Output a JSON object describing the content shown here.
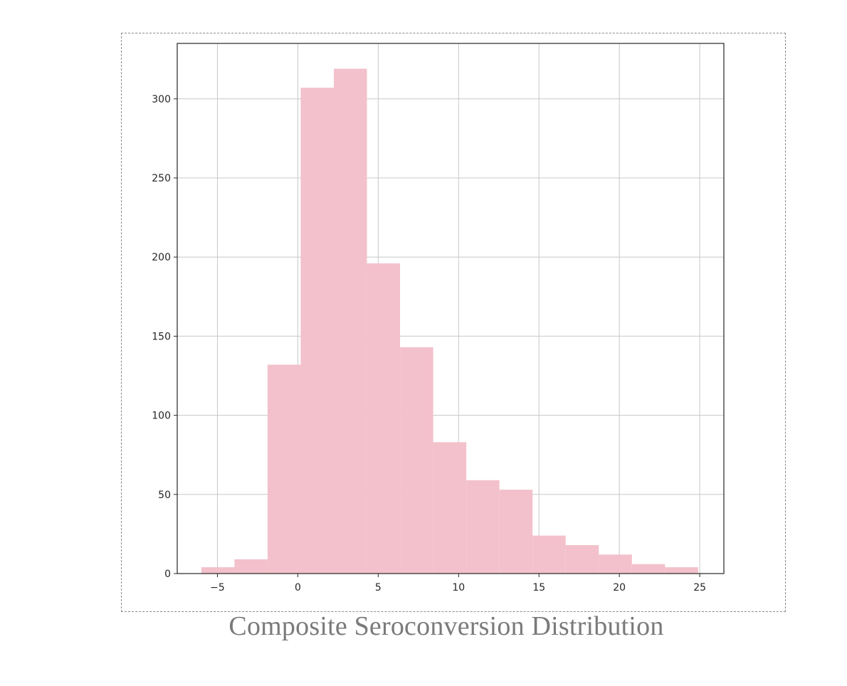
{
  "caption": "Composite Seroconversion Distribution",
  "chart_data": {
    "type": "bar",
    "subtype": "histogram",
    "bin_edges": [
      -6.0,
      -3.94,
      -1.88,
      0.18,
      2.24,
      4.3,
      6.36,
      8.42,
      10.48,
      12.54,
      14.6,
      16.66,
      18.72,
      20.78,
      22.84,
      24.9
    ],
    "values": [
      4,
      9,
      132,
      307,
      319,
      196,
      143,
      83,
      59,
      53,
      24,
      18,
      12,
      6,
      4
    ],
    "xlim": [
      -7.5,
      26.5
    ],
    "ylim": [
      0,
      335
    ],
    "xticks": [
      -5,
      0,
      5,
      10,
      15,
      20,
      25
    ],
    "xtick_labels": [
      "−5",
      "0",
      "5",
      "10",
      "15",
      "20",
      "25"
    ],
    "yticks": [
      0,
      50,
      100,
      150,
      200,
      250,
      300
    ],
    "ytick_labels": [
      "0",
      "50",
      "100",
      "150",
      "200",
      "250",
      "300"
    ],
    "bar_color": "#f3c1cb",
    "grid": true,
    "grid_color": "#c8c8c8",
    "title": "",
    "xlabel": "",
    "ylabel": ""
  }
}
